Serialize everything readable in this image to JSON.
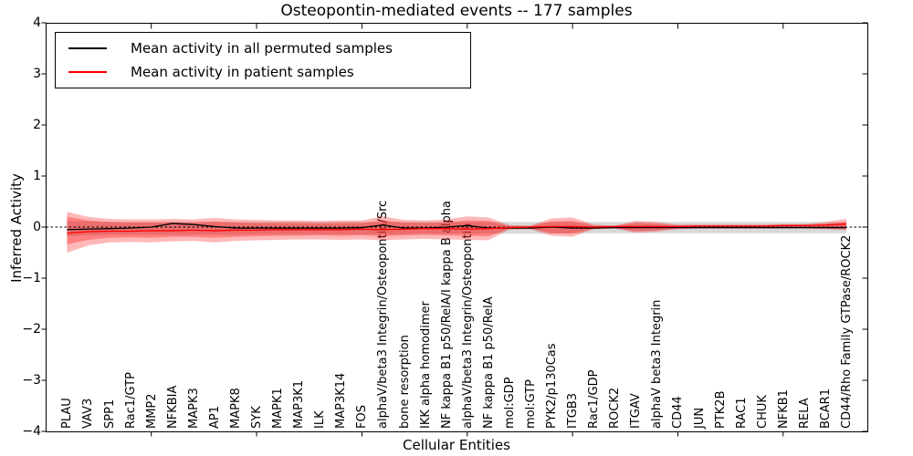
{
  "title": "Osteopontin-mediated events -- 177 samples",
  "axes": {
    "ylabel": "Inferred Activity",
    "xlabel": "Cellular Entities",
    "ytick_labels": [
      "4",
      "3",
      "2",
      "1",
      "0",
      "−1",
      "−2",
      "−3",
      "−4"
    ],
    "ytick_values": [
      4,
      3,
      2,
      1,
      0,
      -1,
      -2,
      -3,
      -4
    ],
    "major_x_tick_indices": [
      4,
      9,
      14,
      19,
      24,
      29,
      34
    ]
  },
  "legend": {
    "items": [
      {
        "label": "Mean activity in all permuted samples",
        "color": "#000000"
      },
      {
        "label": "Mean activity in patient samples",
        "color": "#ff0000"
      }
    ]
  },
  "chart_data": {
    "type": "line",
    "title": "Osteopontin-mediated events -- 177 samples",
    "xlabel": "Cellular Entities",
    "ylabel": "Inferred Activity",
    "ylim": [
      -4,
      4
    ],
    "grid": false,
    "legend_position": "upper left",
    "zero_line": {
      "style": "dashed",
      "color": "#000000",
      "y": 0
    },
    "categories": [
      "PLAU",
      "VAV3",
      "SPP1",
      "Rac1/GTP",
      "MMP2",
      "NFKBIA",
      "MAPK3",
      "AP1",
      "MAPK8",
      "SYK",
      "MAPK1",
      "MAP3K1",
      "ILK",
      "MAP3K14",
      "FOS",
      "alphaV/beta3 Integrin/Osteopontin/Src",
      "bone resorption",
      "IKK alpha homodimer",
      "NF kappa B1 p50/RelA/I kappa B alpha",
      "alphaV/beta3 Integrin/Osteopontin",
      "NF kappa B1 p50/RelA",
      "mol:GDP",
      "mol:GTP",
      "PYK2/p130Cas",
      "ITGB3",
      "Rac1/GDP",
      "ROCK2",
      "ITGAV",
      "alphaV beta3 Integrin",
      "CD44",
      "JUN",
      "PTK2B",
      "RAC1",
      "CHUK",
      "NFKB1",
      "RELA",
      "BCAR1",
      "CD44/Rho Family GTPase/ROCK2"
    ],
    "series": [
      {
        "name": "Mean activity in all permuted samples",
        "color": "#000000",
        "values": [
          -0.05,
          -0.04,
          -0.03,
          -0.02,
          0.0,
          0.07,
          0.05,
          0.01,
          -0.02,
          -0.02,
          -0.02,
          -0.02,
          -0.02,
          -0.02,
          -0.01,
          0.04,
          -0.02,
          -0.02,
          0.0,
          0.03,
          -0.02,
          -0.02,
          -0.02,
          0.0,
          -0.02,
          -0.02,
          -0.01,
          -0.01,
          -0.01,
          -0.01,
          -0.01,
          -0.01,
          -0.01,
          -0.01,
          -0.01,
          -0.01,
          -0.01,
          -0.01
        ]
      },
      {
        "name": "Mean activity in patient samples",
        "color": "#ff0000",
        "values": [
          -0.12,
          -0.09,
          -0.08,
          -0.08,
          -0.07,
          -0.07,
          -0.06,
          -0.07,
          -0.06,
          -0.06,
          -0.05,
          -0.05,
          -0.05,
          -0.05,
          -0.04,
          -0.05,
          -0.04,
          -0.03,
          -0.03,
          -0.04,
          -0.03,
          -0.01,
          0.0,
          0.01,
          0.01,
          0.0,
          0.01,
          0.01,
          0.01,
          0.01,
          0.02,
          0.02,
          0.02,
          0.02,
          0.03,
          0.03,
          0.04,
          0.06
        ]
      }
    ],
    "bands": [
      {
        "name": "permuted-samples-range",
        "color": "#aaaaaa",
        "opacity": 0.45,
        "upper": [
          0.12,
          0.11,
          0.1,
          0.1,
          0.1,
          0.1,
          0.1,
          0.1,
          0.1,
          0.1,
          0.1,
          0.1,
          0.1,
          0.1,
          0.1,
          0.1,
          0.1,
          0.1,
          0.1,
          0.1,
          0.1,
          0.1,
          0.1,
          0.1,
          0.1,
          0.1,
          0.1,
          0.1,
          0.1,
          0.1,
          0.1,
          0.1,
          0.1,
          0.1,
          0.1,
          0.1,
          0.1,
          0.1
        ],
        "lower": [
          -0.18,
          -0.16,
          -0.15,
          -0.15,
          -0.15,
          -0.15,
          -0.15,
          -0.15,
          -0.15,
          -0.14,
          -0.14,
          -0.14,
          -0.14,
          -0.14,
          -0.14,
          -0.14,
          -0.14,
          -0.13,
          -0.13,
          -0.13,
          -0.13,
          -0.13,
          -0.13,
          -0.13,
          -0.12,
          -0.12,
          -0.12,
          -0.12,
          -0.12,
          -0.12,
          -0.12,
          -0.12,
          -0.12,
          -0.12,
          -0.12,
          -0.12,
          -0.12,
          -0.12
        ]
      },
      {
        "name": "patient-samples-range-outer",
        "color": "#ff0000",
        "opacity": 0.28,
        "upper": [
          0.3,
          0.2,
          0.16,
          0.15,
          0.15,
          0.16,
          0.15,
          0.18,
          0.15,
          0.14,
          0.13,
          0.13,
          0.12,
          0.13,
          0.13,
          0.21,
          0.14,
          0.13,
          0.15,
          0.21,
          0.19,
          0.04,
          0.03,
          0.17,
          0.19,
          0.05,
          0.03,
          0.12,
          0.1,
          0.05,
          0.05,
          0.05,
          0.05,
          0.05,
          0.06,
          0.06,
          0.1,
          0.16
        ],
        "lower": [
          -0.5,
          -0.36,
          -0.3,
          -0.29,
          -0.3,
          -0.28,
          -0.27,
          -0.3,
          -0.27,
          -0.26,
          -0.25,
          -0.24,
          -0.24,
          -0.25,
          -0.24,
          -0.26,
          -0.24,
          -0.23,
          -0.24,
          -0.25,
          -0.26,
          -0.05,
          -0.04,
          -0.17,
          -0.19,
          -0.04,
          -0.03,
          -0.11,
          -0.09,
          -0.04,
          -0.03,
          -0.03,
          -0.03,
          -0.03,
          -0.03,
          -0.03,
          -0.04,
          -0.06
        ]
      },
      {
        "name": "patient-samples-range-inner",
        "color": "#ff0000",
        "opacity": 0.3,
        "upper": [
          0.2,
          0.13,
          0.1,
          0.09,
          0.09,
          0.1,
          0.09,
          0.11,
          0.09,
          0.08,
          0.08,
          0.08,
          0.07,
          0.08,
          0.08,
          0.13,
          0.09,
          0.08,
          0.09,
          0.13,
          0.12,
          0.02,
          0.02,
          0.11,
          0.12,
          0.03,
          0.02,
          0.08,
          0.06,
          0.03,
          0.03,
          0.03,
          0.03,
          0.03,
          0.04,
          0.04,
          0.06,
          0.1
        ],
        "lower": [
          -0.34,
          -0.25,
          -0.21,
          -0.2,
          -0.21,
          -0.19,
          -0.19,
          -0.21,
          -0.19,
          -0.18,
          -0.17,
          -0.17,
          -0.16,
          -0.17,
          -0.16,
          -0.18,
          -0.16,
          -0.15,
          -0.16,
          -0.17,
          -0.18,
          -0.03,
          -0.03,
          -0.12,
          -0.13,
          -0.03,
          -0.02,
          -0.08,
          -0.06,
          -0.03,
          -0.02,
          -0.02,
          -0.02,
          -0.02,
          -0.02,
          -0.02,
          -0.03,
          -0.04
        ]
      }
    ]
  }
}
